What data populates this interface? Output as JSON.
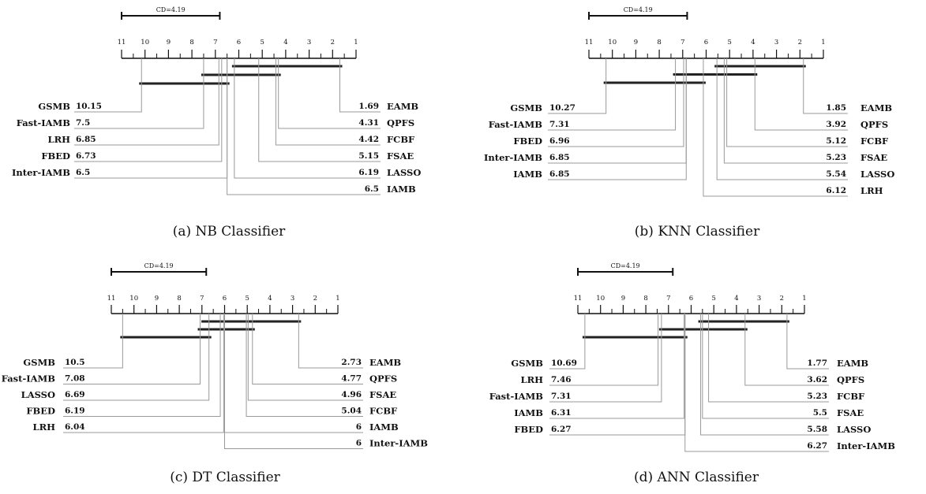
{
  "chart_data": [
    {
      "type": "critical-difference",
      "caption": "(a) NB Classifier",
      "cd_label": "CD=4.19",
      "cd": 4.19,
      "axis": {
        "ticks": [
          "11",
          "10",
          "9",
          "8",
          "7",
          "6",
          "5",
          "4",
          "3",
          "2",
          "1"
        ],
        "range": [
          11,
          1
        ]
      },
      "left": [
        {
          "name": "GSMB",
          "value": 10.15,
          "label": "10.15"
        },
        {
          "name": "Fast-IAMB",
          "value": 7.5,
          "label": "7.5"
        },
        {
          "name": "LRH",
          "value": 6.85,
          "label": "6.85"
        },
        {
          "name": "FBED",
          "value": 6.73,
          "label": "6.73"
        },
        {
          "name": "Inter-IAMB",
          "value": 6.5,
          "label": "6.5"
        }
      ],
      "right": [
        {
          "name": "EAMB",
          "value": 1.69,
          "label": "1.69"
        },
        {
          "name": "QPFS",
          "value": 4.31,
          "label": "4.31"
        },
        {
          "name": "FCBF",
          "value": 4.42,
          "label": "4.42"
        },
        {
          "name": "FSAE",
          "value": 5.15,
          "label": "5.15"
        },
        {
          "name": "LASSO",
          "value": 6.19,
          "label": "6.19"
        },
        {
          "name": "IAMB",
          "value": 6.5,
          "label": "6.5"
        }
      ],
      "cliques": [
        [
          1.69,
          6.19
        ],
        [
          4.31,
          7.5
        ],
        [
          6.5,
          10.15
        ]
      ]
    },
    {
      "type": "critical-difference",
      "caption": "(b) KNN Classifier",
      "cd_label": "CD=4.19",
      "cd": 4.19,
      "axis": {
        "ticks": [
          "11",
          "10",
          "9",
          "8",
          "7",
          "6",
          "5",
          "4",
          "3",
          "2",
          "1"
        ],
        "range": [
          11,
          1
        ]
      },
      "left": [
        {
          "name": "GSMB",
          "value": 10.27,
          "label": "10.27"
        },
        {
          "name": "Fast-IAMB",
          "value": 7.31,
          "label": "7.31"
        },
        {
          "name": "FBED",
          "value": 6.96,
          "label": "6.96"
        },
        {
          "name": "Inter-IAMB",
          "value": 6.85,
          "label": "6.85"
        },
        {
          "name": "IAMB",
          "value": 6.85,
          "label": "6.85"
        }
      ],
      "right": [
        {
          "name": "EAMB",
          "value": 1.85,
          "label": "1.85"
        },
        {
          "name": "QPFS",
          "value": 3.92,
          "label": "3.92"
        },
        {
          "name": "FCBF",
          "value": 5.12,
          "label": "5.12"
        },
        {
          "name": "FSAE",
          "value": 5.23,
          "label": "5.23"
        },
        {
          "name": "LASSO",
          "value": 5.54,
          "label": "5.54"
        },
        {
          "name": "LRH",
          "value": 6.12,
          "label": "6.12"
        }
      ],
      "cliques": [
        [
          1.85,
          5.54
        ],
        [
          3.92,
          7.31
        ],
        [
          6.12,
          10.27
        ]
      ]
    },
    {
      "type": "critical-difference",
      "caption": "(c) DT Classifier",
      "cd_label": "CD=4.19",
      "cd": 4.19,
      "axis": {
        "ticks": [
          "11",
          "10",
          "9",
          "8",
          "7",
          "6",
          "5",
          "4",
          "3",
          "2",
          "1"
        ],
        "range": [
          11,
          1
        ]
      },
      "left": [
        {
          "name": "GSMB",
          "value": 10.5,
          "label": "10.5"
        },
        {
          "name": "Fast-IAMB",
          "value": 7.08,
          "label": "7.08"
        },
        {
          "name": "LASSO",
          "value": 6.69,
          "label": "6.69"
        },
        {
          "name": "FBED",
          "value": 6.19,
          "label": "6.19"
        },
        {
          "name": "LRH",
          "value": 6.04,
          "label": "6.04"
        }
      ],
      "right": [
        {
          "name": "EAMB",
          "value": 2.73,
          "label": "2.73"
        },
        {
          "name": "QPFS",
          "value": 4.77,
          "label": "4.77"
        },
        {
          "name": "FSAE",
          "value": 4.96,
          "label": "4.96"
        },
        {
          "name": "FCBF",
          "value": 5.04,
          "label": "5.04"
        },
        {
          "name": "IAMB",
          "value": 6,
          "label": "6"
        },
        {
          "name": "Inter-IAMB",
          "value": 6,
          "label": "6"
        }
      ],
      "cliques": [
        [
          2.73,
          6.92
        ],
        [
          4.77,
          7.08
        ],
        [
          6.69,
          10.5
        ]
      ]
    },
    {
      "type": "critical-difference",
      "caption": "(d) ANN Classifier",
      "cd_label": "CD=4.19",
      "cd": 4.19,
      "axis": {
        "ticks": [
          "11",
          "10",
          "9",
          "8",
          "7",
          "6",
          "5",
          "4",
          "3",
          "2",
          "1"
        ],
        "range": [
          11,
          1
        ]
      },
      "left": [
        {
          "name": "GSMB",
          "value": 10.69,
          "label": "10.69"
        },
        {
          "name": "LRH",
          "value": 7.46,
          "label": "7.46"
        },
        {
          "name": "Fast-IAMB",
          "value": 7.31,
          "label": "7.31"
        },
        {
          "name": "IAMB",
          "value": 6.31,
          "label": "6.31"
        },
        {
          "name": "FBED",
          "value": 6.27,
          "label": "6.27"
        }
      ],
      "right": [
        {
          "name": "EAMB",
          "value": 1.77,
          "label": "1.77"
        },
        {
          "name": "QPFS",
          "value": 3.62,
          "label": "3.62"
        },
        {
          "name": "FCBF",
          "value": 5.23,
          "label": "5.23"
        },
        {
          "name": "FSAE",
          "value": 5.5,
          "label": "5.5"
        },
        {
          "name": "LASSO",
          "value": 5.58,
          "label": "5.58"
        },
        {
          "name": "Inter-IAMB",
          "value": 6.27,
          "label": "6.27"
        }
      ],
      "cliques": [
        [
          1.77,
          5.58
        ],
        [
          3.62,
          7.31
        ],
        [
          6.27,
          10.69
        ]
      ]
    }
  ]
}
